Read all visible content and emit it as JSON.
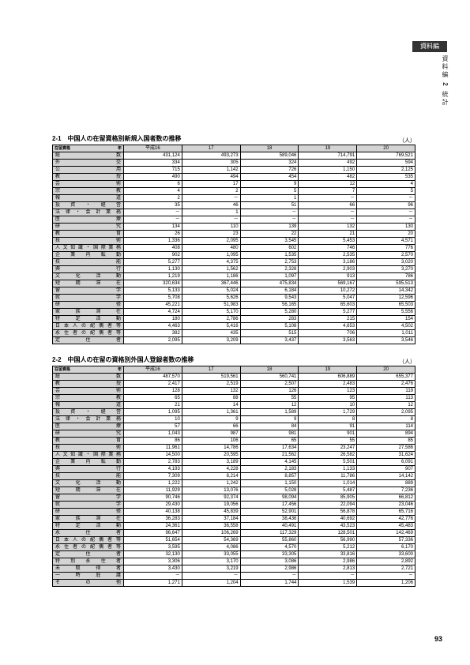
{
  "sideTab": "資料編",
  "sideLabel": "資料編",
  "sideN": "2",
  "sideSub": "統計",
  "pageNum": "93",
  "unit": "（人）",
  "cornerYear": "年",
  "cornerCat": "在留資格",
  "years": [
    "平成16",
    "17",
    "18",
    "19",
    "20"
  ],
  "t1": {
    "title": "2-1　中国人の在留資格別新規入国者数の推移",
    "rows": [
      {
        "h": "総数",
        "v": [
          "431,124",
          "493,273",
          "589,046",
          "714,791",
          "769,521"
        ]
      },
      {
        "h": "外交",
        "v": [
          "334",
          "305",
          "324",
          "492",
          "594"
        ]
      },
      {
        "h": "公用",
        "v": [
          "715",
          "1,142",
          "726",
          "1,150",
          "2,125"
        ]
      },
      {
        "h": "教授",
        "v": [
          "490",
          "494",
          "454",
          "482",
          "535"
        ]
      },
      {
        "h": "芸術",
        "v": [
          "6",
          "17",
          "9",
          "12",
          "4"
        ]
      },
      {
        "h": "宗教",
        "v": [
          "4",
          "2",
          "5",
          "7",
          "5"
        ]
      },
      {
        "h": "報道",
        "v": [
          "2",
          "－",
          "1",
          "－",
          "－"
        ]
      },
      {
        "h": "投資・経営",
        "v": [
          "35",
          "46",
          "51",
          "66",
          "96"
        ]
      },
      {
        "h": "法律・会計業務",
        "v": [
          "－",
          "1",
          "－",
          "－",
          "－"
        ]
      },
      {
        "h": "医療",
        "v": [
          "－",
          "－",
          "－",
          "－",
          "－"
        ]
      },
      {
        "h": "研究",
        "v": [
          "134",
          "110",
          "139",
          "132",
          "130"
        ]
      },
      {
        "h": "教育",
        "v": [
          "26",
          "23",
          "22",
          "21",
          "20"
        ]
      },
      {
        "h": "技術",
        "v": [
          "1,336",
          "2,095",
          "3,545",
          "5,453",
          "4,571"
        ]
      },
      {
        "h": "人文知識・国際業務",
        "v": [
          "408",
          "480",
          "602",
          "746",
          "776"
        ]
      },
      {
        "h": "企業内転勤",
        "v": [
          "902",
          "1,095",
          "1,535",
          "2,535",
          "2,570"
        ]
      },
      {
        "h": "技能",
        "v": [
          "5,277",
          "4,375",
          "2,753",
          "3,186",
          "3,020"
        ]
      },
      {
        "h": "興行",
        "v": [
          "1,130",
          "1,562",
          "2,328",
          "2,903",
          "3,270"
        ]
      },
      {
        "h": "文化活動",
        "v": [
          "1,219",
          "1,186",
          "1,097",
          "913",
          "786"
        ]
      },
      {
        "h": "短期滞在",
        "v": [
          "320,634",
          "367,446",
          "475,834",
          "569,167",
          "595,513"
        ]
      },
      {
        "h": "留学",
        "v": [
          "5,133",
          "5,024",
          "6,184",
          "10,272",
          "14,342"
        ]
      },
      {
        "h": "就学",
        "v": [
          "5,708",
          "5,626",
          "9,543",
          "5,047",
          "12,596"
        ]
      },
      {
        "h": "研修",
        "v": [
          "45,221",
          "51,983",
          "56,165",
          "65,603",
          "65,503"
        ]
      },
      {
        "h": "家族滞在",
        "v": [
          "4,724",
          "5,170",
          "5,280",
          "5,277",
          "5,556"
        ]
      },
      {
        "h": "特定活動",
        "v": [
          "180",
          "2,786",
          "283",
          "215",
          "154"
        ]
      },
      {
        "h": "日本人の配偶者等",
        "v": [
          "4,463",
          "5,416",
          "5,108",
          "4,653",
          "4,502"
        ]
      },
      {
        "h": "永住者の配偶者等",
        "v": [
          "382",
          "435",
          "515",
          "706",
          "1,011"
        ]
      },
      {
        "h": "定住者",
        "v": [
          "2,095",
          "3,209",
          "3,437",
          "3,563",
          "3,546"
        ]
      }
    ]
  },
  "t2": {
    "title": "2-2　中国人の在留の資格別外国人登録者数の推移",
    "rows": [
      {
        "h": "総数",
        "v": [
          "487,570",
          "519,561",
          "560,741",
          "606,889",
          "655,377"
        ]
      },
      {
        "h": "教授",
        "v": [
          "2,417",
          "2,519",
          "2,507",
          "2,483",
          "2,476"
        ]
      },
      {
        "h": "芸術",
        "v": [
          "128",
          "132",
          "126",
          "123",
          "119"
        ]
      },
      {
        "h": "宗教",
        "v": [
          "65",
          "88",
          "55",
          "95",
          "113"
        ]
      },
      {
        "h": "報道",
        "v": [
          "21",
          "14",
          "12",
          "10",
          "12"
        ]
      },
      {
        "h": "投資・経営",
        "v": [
          "1,095",
          "1,361",
          "1,589",
          "1,729",
          "2,095"
        ]
      },
      {
        "h": "法律・会計業務",
        "v": [
          "10",
          "9",
          "9",
          "8",
          "8"
        ]
      },
      {
        "h": "医療",
        "v": [
          "57",
          "66",
          "84",
          "91",
          "114"
        ]
      },
      {
        "h": "研究",
        "v": [
          "1,043",
          "987",
          "981",
          "901",
          "894"
        ]
      },
      {
        "h": "教育",
        "v": [
          "86",
          "106",
          "65",
          "55",
          "85"
        ]
      },
      {
        "h": "技術",
        "v": [
          "11,961",
          "14,786",
          "17,634",
          "23,247",
          "27,586"
        ]
      },
      {
        "h": "人文知識・国際業務",
        "v": [
          "14,500",
          "20,595",
          "21,562",
          "26,582",
          "31,624"
        ]
      },
      {
        "h": "企業内転勤",
        "v": [
          "2,783",
          "3,189",
          "4,145",
          "5,501",
          "6,091"
        ]
      },
      {
        "h": "興行",
        "v": [
          "4,193",
          "4,228",
          "2,183",
          "1,133",
          "907"
        ]
      },
      {
        "h": "技能",
        "v": [
          "7,309",
          "8,214",
          "8,857",
          "11,786",
          "14,142"
        ]
      },
      {
        "h": "文化活動",
        "v": [
          "1,222",
          "1,242",
          "1,150",
          "1,014",
          "889"
        ]
      },
      {
        "h": "短期滞在",
        "v": [
          "11,929",
          "13,076",
          "5,028",
          "5,487",
          "7,236"
        ]
      },
      {
        "h": "留学",
        "v": [
          "90,746",
          "92,374",
          "98,094",
          "85,905",
          "66,812"
        ]
      },
      {
        "h": "就学",
        "v": [
          "29,430",
          "19,056",
          "17,456",
          "22,094",
          "23,046"
        ]
      },
      {
        "h": "研修",
        "v": [
          "40,138",
          "45,839",
          "52,901",
          "56,878",
          "65,716"
        ]
      },
      {
        "h": "家族滞在",
        "v": [
          "36,283",
          "37,184",
          "38,436",
          "40,692",
          "42,776"
        ]
      },
      {
        "h": "特定活動",
        "v": [
          "24,361",
          "36,558",
          "40,491",
          "43,523",
          "45,483"
        ]
      },
      {
        "h": "永住者",
        "v": [
          "96,647",
          "106,269",
          "117,329",
          "128,501",
          "142,469"
        ]
      },
      {
        "h": "日本人の配偶者等",
        "v": [
          "51,654",
          "54,369",
          "55,860",
          "56,990",
          "57,336"
        ]
      },
      {
        "h": "永住者の配偶者等",
        "v": [
          "3,595",
          "4,086",
          "4,570",
          "5,212",
          "6,170"
        ]
      },
      {
        "h": "定住者",
        "v": [
          "32,130",
          "33,055",
          "33,305",
          "33,816",
          "33,600"
        ]
      },
      {
        "h": "特別永住者",
        "v": [
          "3,306",
          "3,170",
          "3,086",
          "2,986",
          "2,892"
        ]
      },
      {
        "h": "未取得者",
        "v": [
          "3,430",
          "3,219",
          "2,986",
          "2,813",
          "2,721"
        ]
      },
      {
        "h": "一時庇護",
        "v": [
          "－",
          "－",
          "－",
          "－",
          "－"
        ]
      },
      {
        "h": "その他",
        "v": [
          "1,271",
          "1,204",
          "1,744",
          "1,539",
          "1,206"
        ]
      }
    ]
  }
}
